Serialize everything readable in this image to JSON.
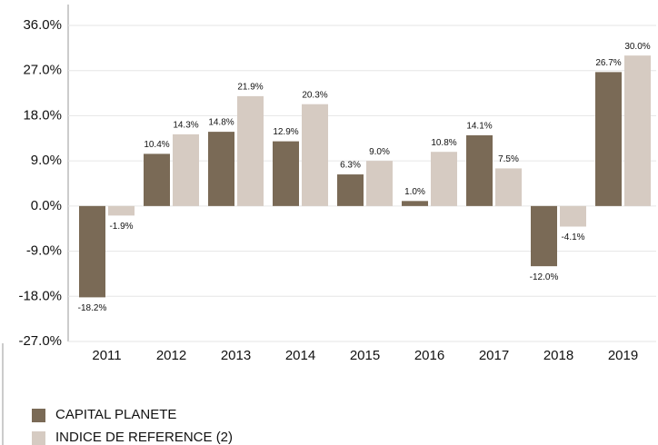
{
  "chart_data": {
    "type": "bar",
    "categories": [
      "2011",
      "2012",
      "2013",
      "2014",
      "2015",
      "2016",
      "2017",
      "2018",
      "2019"
    ],
    "series": [
      {
        "name": "CAPITAL PLANETE",
        "color": "#7a6a56",
        "values": [
          -18.2,
          10.4,
          14.8,
          12.9,
          6.3,
          1.0,
          14.1,
          -12.0,
          26.7
        ],
        "value_labels": [
          "-18.2%",
          "10.4%",
          "14.8%",
          "12.9%",
          "6.3%",
          "1.0%",
          "14.1%",
          "-12.0%",
          "26.7%"
        ]
      },
      {
        "name": "INDICE DE REFERENCE (2)",
        "color": "#d6cbc2",
        "values": [
          -1.9,
          14.3,
          21.9,
          20.3,
          9.0,
          10.8,
          7.5,
          -4.1,
          30.0
        ],
        "value_labels": [
          "-1.9%",
          "14.3%",
          "21.9%",
          "20.3%",
          "9.0%",
          "10.8%",
          "7.5%",
          "-4.1%",
          "30.0%"
        ]
      }
    ],
    "ylim": [
      -27,
      36
    ],
    "yticks": [
      {
        "value": -27,
        "label": "-27.0%"
      },
      {
        "value": -18,
        "label": "-18.0%"
      },
      {
        "value": -9,
        "label": "-9.0%"
      },
      {
        "value": 0,
        "label": "0.0%"
      },
      {
        "value": 9,
        "label": "9.0%"
      },
      {
        "value": 18,
        "label": "18.0%"
      },
      {
        "value": 27,
        "label": "27.0%"
      },
      {
        "value": 36,
        "label": "36.0%"
      }
    ],
    "grid": true,
    "legend": "bottom-left"
  }
}
